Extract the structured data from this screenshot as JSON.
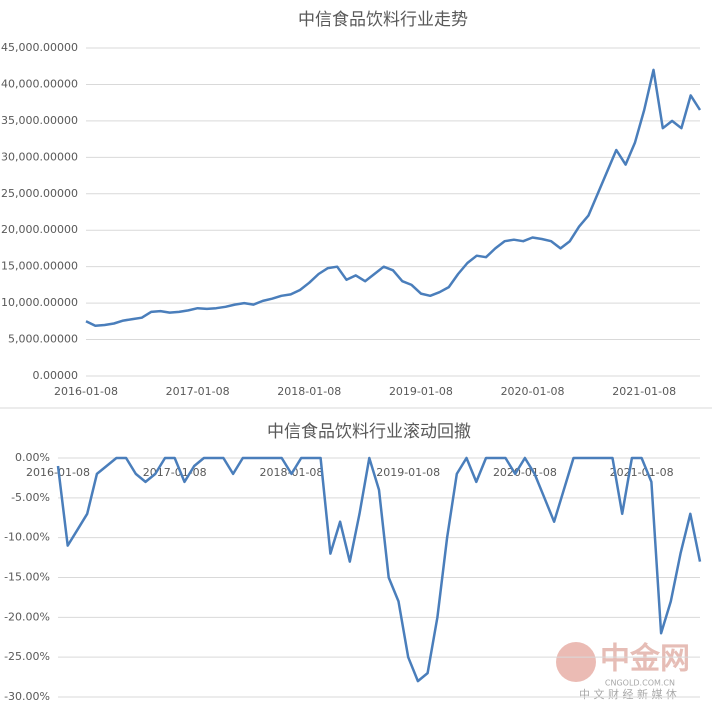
{
  "chart_data": [
    {
      "type": "line",
      "title": "中信食品饮料行业走势",
      "categories": [
        "2016-01-08",
        null,
        null,
        null,
        null,
        null,
        null,
        null,
        null,
        null,
        null,
        null,
        "2017-01-08",
        null,
        null,
        null,
        null,
        null,
        null,
        null,
        null,
        null,
        null,
        null,
        "2018-01-08",
        null,
        null,
        null,
        null,
        null,
        null,
        null,
        null,
        null,
        null,
        null,
        "2019-01-08",
        null,
        null,
        null,
        null,
        null,
        null,
        null,
        null,
        null,
        null,
        null,
        "2020-01-08",
        null,
        null,
        null,
        null,
        null,
        null,
        null,
        null,
        null,
        null,
        null,
        "2021-01-08",
        null,
        null,
        null,
        null,
        null,
        null
      ],
      "series": [
        {
          "name": "中信食品饮料",
          "color": "#4a7ebb",
          "values": [
            7500,
            6900,
            7000,
            7200,
            7600,
            7800,
            8000,
            8800,
            8900,
            8700,
            8800,
            9000,
            9300,
            9200,
            9300,
            9500,
            9800,
            10000,
            9800,
            10300,
            10600,
            11000,
            11200,
            11800,
            12800,
            14000,
            14800,
            15000,
            13200,
            13800,
            13000,
            14000,
            15000,
            14500,
            13000,
            12500,
            11300,
            11000,
            11500,
            12200,
            14000,
            15500,
            16500,
            16300,
            17500,
            18500,
            18700,
            18500,
            19000,
            18800,
            18500,
            17500,
            18500,
            20500,
            22000,
            25000,
            28000,
            31000,
            29000,
            32000,
            36500,
            42000,
            34000,
            35000,
            34000,
            38500,
            36500
          ]
        }
      ],
      "ylim": [
        0,
        45000
      ],
      "yticks": [
        {
          "value": 0,
          "label": "0.00000"
        },
        {
          "value": 5000,
          "label": "5,000.00000"
        },
        {
          "value": 10000,
          "label": "10,000.00000"
        },
        {
          "value": 15000,
          "label": "15,000.00000"
        },
        {
          "value": 20000,
          "label": "20,000.00000"
        },
        {
          "value": 25000,
          "label": "25,000.00000"
        },
        {
          "value": 30000,
          "label": "30,000.00000"
        },
        {
          "value": 35000,
          "label": "35,000.00000"
        },
        {
          "value": 40000,
          "label": "40,000.00000"
        },
        {
          "value": 45000,
          "label": "45,000.00000"
        }
      ],
      "grid": true
    },
    {
      "type": "line",
      "title": "中信食品饮料行业滚动回撤",
      "categories": [
        "2016-01-08",
        null,
        null,
        null,
        null,
        null,
        null,
        null,
        null,
        null,
        null,
        null,
        "2017-01-08",
        null,
        null,
        null,
        null,
        null,
        null,
        null,
        null,
        null,
        null,
        null,
        "2018-01-08",
        null,
        null,
        null,
        null,
        null,
        null,
        null,
        null,
        null,
        null,
        null,
        "2019-01-08",
        null,
        null,
        null,
        null,
        null,
        null,
        null,
        null,
        null,
        null,
        null,
        "2020-01-08",
        null,
        null,
        null,
        null,
        null,
        null,
        null,
        null,
        null,
        null,
        null,
        "2021-01-08",
        null,
        null,
        null,
        null,
        null,
        null
      ],
      "series": [
        {
          "name": "滚动回撤",
          "color": "#4a7ebb",
          "values": [
            -1,
            -11,
            -9,
            -7,
            -2,
            -1,
            0,
            0,
            -2,
            -3,
            -2,
            0,
            0,
            -3,
            -1,
            0,
            0,
            0,
            -2,
            0,
            0,
            0,
            0,
            0,
            -2,
            0,
            0,
            0,
            -12,
            -8,
            -13,
            -7,
            0,
            -4,
            -15,
            -18,
            -25,
            -28,
            -27,
            -20,
            -10,
            -2,
            0,
            -3,
            0,
            0,
            0,
            -2,
            0,
            -2,
            -5,
            -8,
            -4,
            0,
            0,
            0,
            0,
            0,
            -7,
            0,
            0,
            -3,
            -22,
            -18,
            -12,
            -7,
            -13
          ]
        }
      ],
      "ylim": [
        -30,
        0
      ],
      "yticks": [
        {
          "value": 0,
          "label": "0.00%"
        },
        {
          "value": -5,
          "label": "-5.00%"
        },
        {
          "value": -10,
          "label": "-10.00%"
        },
        {
          "value": -15,
          "label": "-15.00%"
        },
        {
          "value": -20,
          "label": "-20.00%"
        },
        {
          "value": -25,
          "label": "-25.00%"
        },
        {
          "value": -30,
          "label": "-30.00%"
        }
      ],
      "grid": true,
      "xaxis_at_top": true
    }
  ],
  "watermark": {
    "name": "中金网",
    "url": "CNGOLD.COM.CN",
    "tagline": "中 文 财 经 新 媒 体"
  }
}
